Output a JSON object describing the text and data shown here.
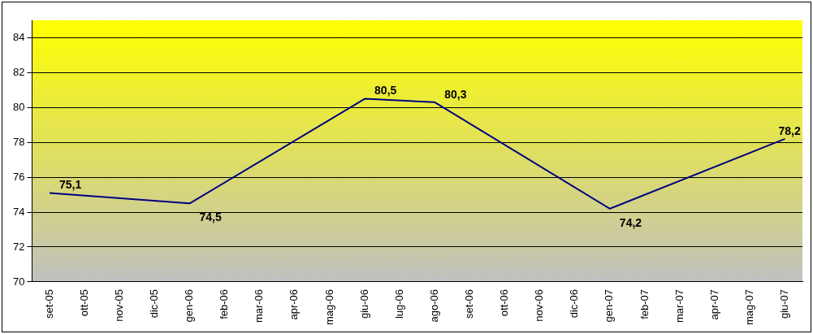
{
  "chart_data": {
    "type": "line",
    "categories": [
      "set-05",
      "ott-05",
      "nov-05",
      "dic-05",
      "gen-06",
      "feb-06",
      "mar-06",
      "apr-06",
      "mag-06",
      "giu-06",
      "lug-06",
      "ago-06",
      "set-06",
      "ott-06",
      "nov-06",
      "dic-06",
      "gen-07",
      "feb-07",
      "mar-07",
      "apr-07",
      "mag-07",
      "giu-07"
    ],
    "values": [
      75.1,
      null,
      null,
      null,
      74.5,
      null,
      null,
      null,
      null,
      80.5,
      null,
      80.3,
      null,
      null,
      null,
      null,
      74.2,
      null,
      null,
      null,
      null,
      78.2
    ],
    "value_labels": [
      "75,1",
      null,
      null,
      null,
      "74,5",
      null,
      null,
      null,
      null,
      "80,5",
      null,
      "80,3",
      null,
      null,
      null,
      null,
      "74,2",
      null,
      null,
      null,
      null,
      "78,2"
    ],
    "color": "#000080",
    "ylim": [
      70,
      85
    ],
    "yticks": [
      70,
      72,
      74,
      76,
      78,
      80,
      82,
      84
    ],
    "grid": "y",
    "marker": "none",
    "legend": false
  }
}
